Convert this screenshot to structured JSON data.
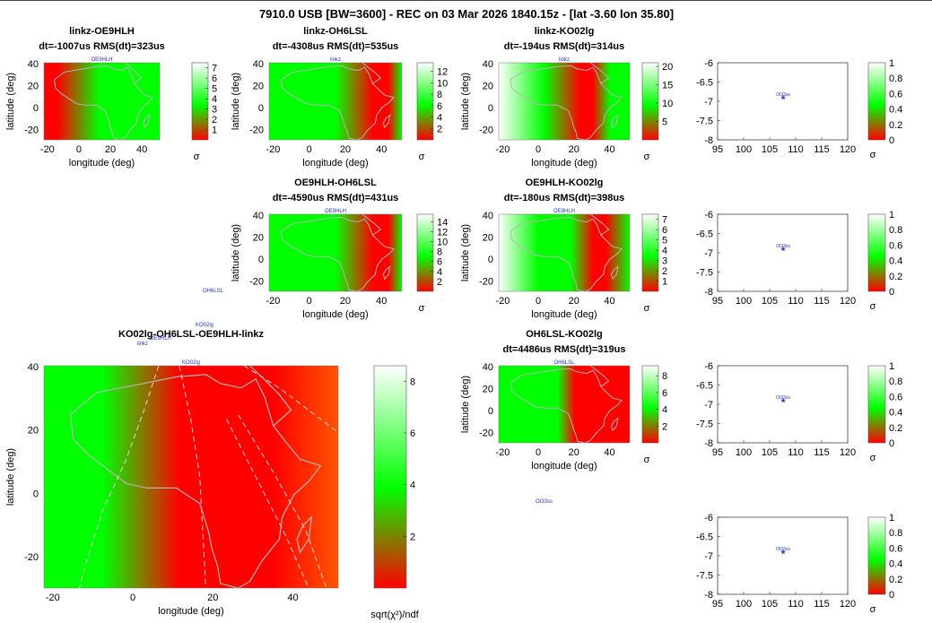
{
  "title": "7910.0 USB [BW=3600] - REC on 03 Mar 2026 1840.15z - [lat -3.60 lon 35.80]",
  "colors": {
    "low": "#ff0000",
    "mid": "#00ff00",
    "high": "#ffffff",
    "coast": "#b4b4b4",
    "marker": "#1a2fd0",
    "label": "#2233cc"
  },
  "axis_labels": {
    "longitude": "longitude (deg)",
    "latitude": "latitude (deg)",
    "sigma": "σ",
    "chi": "sqrt(χ²)/ndf"
  },
  "stray_labels": [
    "OH6LSL",
    "OE9HLH",
    "KO02lg",
    "linkz",
    "OI33ss"
  ],
  "chart_data": [
    {
      "type": "heatmap",
      "id": "linkz-OE9HLH",
      "title": "linkz-OE9HLH",
      "subtitle": "dt=-1007us RMS(dt)=323us",
      "x_ticks": [
        "-20",
        "0",
        "20",
        "40"
      ],
      "y_ticks": [
        "40",
        "20",
        "0",
        "-20"
      ],
      "colorbar": {
        "ticks": [
          "7",
          "6",
          "5",
          "4",
          "3",
          "2",
          "1"
        ],
        "range": [
          0,
          7.5
        ],
        "label": "σ"
      },
      "station_label": "OE9HLH"
    },
    {
      "type": "heatmap",
      "id": "linkz-OH6LSL",
      "title": "linkz-OH6LSL",
      "subtitle": "dt=-4308us RMS(dt)=535us",
      "x_ticks": [
        "-20",
        "0",
        "20",
        "40"
      ],
      "y_ticks": [
        "40",
        "20",
        "0",
        "-20"
      ],
      "colorbar": {
        "ticks": [
          "12",
          "10",
          "8",
          "6",
          "4",
          "2"
        ],
        "range": [
          0,
          13.5
        ],
        "label": "σ"
      },
      "station_label": "linkz"
    },
    {
      "type": "heatmap",
      "id": "linkz-KO02lg",
      "title": "linkz-KO02lg",
      "subtitle": "dt=-194us RMS(dt)=314us",
      "x_ticks": [
        "-20",
        "0",
        "20",
        "40"
      ],
      "y_ticks": [
        "40",
        "20",
        "0",
        "-20"
      ],
      "colorbar": {
        "ticks": [
          "20",
          "15",
          "10",
          "5"
        ],
        "range": [
          0,
          21
        ],
        "label": "σ"
      },
      "station_label": "linkz"
    },
    {
      "type": "heatmap",
      "id": "OE9HLH-OH6LSL",
      "title": "OE9HLH-OH6LSL",
      "subtitle": "dt=-4590us RMS(dt)=431us",
      "x_ticks": [
        "-20",
        "0",
        "20",
        "40"
      ],
      "y_ticks": [
        "40",
        "20",
        "0",
        "-20"
      ],
      "colorbar": {
        "ticks": [
          "14",
          "12",
          "10",
          "8",
          "6",
          "4",
          "2"
        ],
        "range": [
          0,
          15.5
        ],
        "label": "σ"
      },
      "station_label": "OE9HLH"
    },
    {
      "type": "heatmap",
      "id": "OE9HLH-KO02lg",
      "title": "OE9HLH-KO02lg",
      "subtitle": "dt=-180us RMS(dt)=398us",
      "x_ticks": [
        "-20",
        "0",
        "20",
        "40"
      ],
      "y_ticks": [
        "40",
        "20",
        "0",
        "-20"
      ],
      "colorbar": {
        "ticks": [
          "7",
          "6",
          "5",
          "4",
          "3",
          "2",
          "1"
        ],
        "range": [
          0,
          7.5
        ],
        "label": "σ"
      },
      "station_label": "OE9HLH"
    },
    {
      "type": "heatmap",
      "id": "OH6LSL-KO02lg",
      "title": "OH6LSL-KO02lg",
      "subtitle": "dt=4486us RMS(dt)=319us",
      "x_ticks": [
        "-20",
        "0",
        "20",
        "40"
      ],
      "y_ticks": [
        "40",
        "20",
        "0",
        "-20"
      ],
      "colorbar": {
        "ticks": [
          "8",
          "6",
          "4",
          "2"
        ],
        "range": [
          0,
          9.2
        ],
        "label": "σ"
      },
      "station_label": "OH6LSL"
    },
    {
      "type": "heatmap",
      "id": "combined",
      "title": "KO02lg-OH6LSL-OE9HLH-linkz",
      "subtitle": "",
      "x_ticks": [
        "-20",
        "0",
        "20",
        "40"
      ],
      "y_ticks": [
        "40",
        "20",
        "0",
        "-20"
      ],
      "colorbar": {
        "ticks": [
          "8",
          "6",
          "4",
          "2"
        ],
        "range": [
          0,
          8.6
        ],
        "label": "sqrt(χ²)/ndf"
      },
      "station_label": "KO02lg"
    },
    {
      "type": "scatter",
      "id": "OI33ss-1",
      "x_ticks": [
        "95",
        "100",
        "105",
        "110",
        "115",
        "120"
      ],
      "y_ticks": [
        "-6",
        "-6.5",
        "-7",
        "-7.5",
        "-8"
      ],
      "xlim": [
        95,
        120
      ],
      "ylim": [
        -8,
        -6
      ],
      "points": [
        {
          "x": 107.6,
          "y": -6.95,
          "label": "OI33ss"
        }
      ],
      "colorbar": {
        "ticks": [
          "1",
          "0.8",
          "0.6",
          "0.4",
          "0.2",
          "0"
        ],
        "label": "σ"
      }
    },
    {
      "type": "scatter",
      "id": "OI33ss-2",
      "x_ticks": [
        "95",
        "100",
        "105",
        "110",
        "115",
        "120"
      ],
      "y_ticks": [
        "-6",
        "-6.5",
        "-7",
        "-7.5",
        "-8"
      ],
      "xlim": [
        95,
        120
      ],
      "ylim": [
        -8,
        -6
      ],
      "points": [
        {
          "x": 107.6,
          "y": -6.95,
          "label": "OI33ss"
        }
      ],
      "colorbar": {
        "ticks": [
          "1",
          "0.8",
          "0.6",
          "0.4",
          "0.2",
          "0"
        ],
        "label": "σ"
      }
    },
    {
      "type": "scatter",
      "id": "OI33ss-3",
      "x_ticks": [
        "95",
        "100",
        "105",
        "110",
        "115",
        "120"
      ],
      "y_ticks": [
        "-6",
        "-6.5",
        "-7",
        "-7.5",
        "-8"
      ],
      "xlim": [
        95,
        120
      ],
      "ylim": [
        -8,
        -6
      ],
      "points": [
        {
          "x": 107.6,
          "y": -6.95,
          "label": "OI33ss"
        }
      ],
      "colorbar": {
        "ticks": [
          "1",
          "0.8",
          "0.6",
          "0.4",
          "0.2",
          "0"
        ],
        "label": "σ"
      }
    },
    {
      "type": "scatter",
      "id": "OI33ss-4",
      "x_ticks": [
        "95",
        "100",
        "105",
        "110",
        "115",
        "120"
      ],
      "y_ticks": [
        "-6",
        "-6.5",
        "-7",
        "-7.5",
        "-8"
      ],
      "xlim": [
        95,
        120
      ],
      "ylim": [
        -8,
        -6
      ],
      "points": [
        {
          "x": 107.6,
          "y": -6.95,
          "label": "OI33ss"
        }
      ],
      "colorbar": {
        "ticks": [
          "1",
          "0.8",
          "0.6",
          "0.4",
          "0.2",
          "0"
        ],
        "label": "σ"
      }
    }
  ]
}
